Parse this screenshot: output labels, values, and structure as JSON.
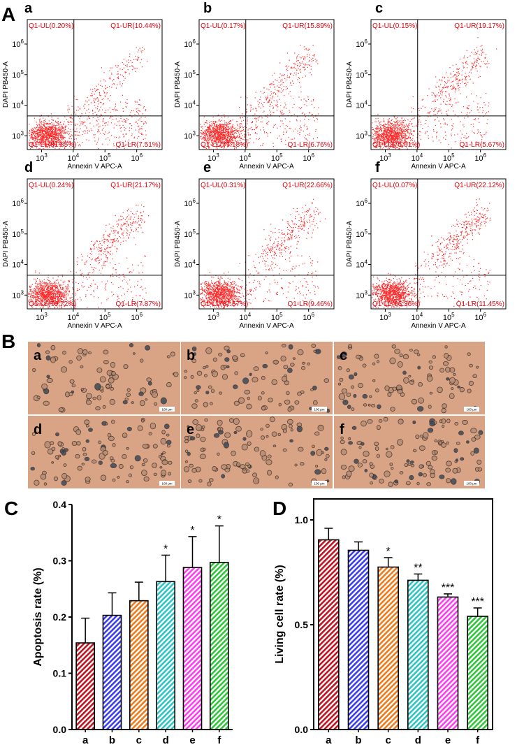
{
  "panel_letters": {
    "A": "A",
    "B": "B",
    "C": "C",
    "D": "D"
  },
  "flow_panels": [
    {
      "letter": "a",
      "UL": "Q1-UL(0.20%)",
      "UR": "Q1-UR(10.44%)",
      "LL": "Q1-LL(81.85%)",
      "LR": "Q1-LR(7.51%)"
    },
    {
      "letter": "b",
      "UL": "Q1-UL(0.17%)",
      "UR": "Q1-UR(15.89%)",
      "LL": "Q1-LL(77.18%)",
      "LR": "Q1-LR(6.76%)"
    },
    {
      "letter": "c",
      "UL": "Q1-UL(0.15%)",
      "UR": "Q1-UR(19.17%)",
      "LL": "Q1-LL(75.01%)",
      "LR": "Q1-LR(5.67%)"
    },
    {
      "letter": "d",
      "UL": "Q1-UL(0.24%)",
      "UR": "Q1-UR(21.17%)",
      "LL": "Q1-LL(70.72%)",
      "LR": "Q1-LR(7.87%)"
    },
    {
      "letter": "e",
      "UL": "Q1-UL(0.31%)",
      "UR": "Q1-UR(22.66%)",
      "LL": "Q1-LL(67.57%)",
      "LR": "Q1-LR(9.46%)"
    },
    {
      "letter": "f",
      "UL": "Q1-UL(0.07%)",
      "UR": "Q1-UR(22.12%)",
      "LL": "Q1-LL(66.36%)",
      "LR": "Q1-LR(11.45%)"
    }
  ],
  "flow_axes": {
    "xlabel": "Annexin V APC-A",
    "ylabel": "DAPI PB450-A",
    "xticks": [
      "10^3",
      "10^4",
      "10^5",
      "10^6"
    ],
    "yticks": [
      "10^3",
      "10^4",
      "10^5",
      "10^6"
    ]
  },
  "micro_panels": [
    {
      "letter": "a",
      "scale": "100 μm"
    },
    {
      "letter": "b",
      "scale": "100 μm"
    },
    {
      "letter": "c",
      "scale": "100 μm"
    },
    {
      "letter": "d",
      "scale": "100 μm"
    },
    {
      "letter": "e",
      "scale": "100 μm"
    },
    {
      "letter": "f",
      "scale": "100 μm"
    }
  ],
  "colors": {
    "dots": "#ff2a2a",
    "tissue": "#d9a486",
    "bar_a": "#c1121f",
    "bar_b": "#3a3df0",
    "bar_c": "#f07a1a",
    "bar_d": "#2ec4c4",
    "bar_e": "#ff3df0",
    "bar_f": "#2fc43a"
  },
  "chart_data": [
    {
      "type": "bar",
      "categories": [
        "a",
        "b",
        "c",
        "d",
        "e",
        "f"
      ],
      "values": [
        0.154,
        0.203,
        0.229,
        0.263,
        0.288,
        0.297
      ],
      "errors": [
        0.044,
        0.04,
        0.033,
        0.047,
        0.055,
        0.065
      ],
      "significance": [
        "",
        "",
        "",
        "*",
        "*",
        "*"
      ],
      "ylabel": "Apoptosis rate (%)",
      "ylim": [
        0,
        0.4
      ],
      "yticks": [
        "0.0",
        "0.1",
        "0.2",
        "0.3",
        "0.4"
      ]
    },
    {
      "type": "bar",
      "categories": [
        "a",
        "b",
        "c",
        "d",
        "e",
        "f"
      ],
      "values": [
        0.905,
        0.855,
        0.775,
        0.712,
        0.632,
        0.54
      ],
      "errors": [
        0.055,
        0.04,
        0.045,
        0.03,
        0.015,
        0.04
      ],
      "significance": [
        "",
        "",
        "*",
        "**",
        "***",
        "***"
      ],
      "ylabel": "Living cell rate (%)",
      "ylim": [
        0,
        1.1
      ],
      "yticks": [
        "0.0",
        "0.5",
        "1.0"
      ]
    }
  ]
}
